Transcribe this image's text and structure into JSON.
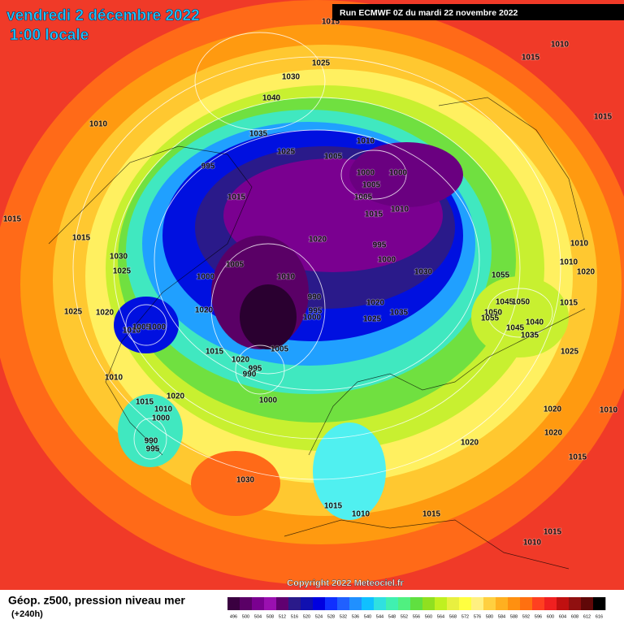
{
  "header": {
    "title": "vendredi 2 décembre 2022",
    "subtitle": "1:00 locale",
    "run": "Run ECMWF 0Z du mardi 22 novembre 2022"
  },
  "isobar_labels": [
    "1015",
    "1025",
    "1030",
    "1040",
    "1015",
    "1010",
    "1010",
    "1035",
    "1025",
    "1005",
    "1010",
    "995",
    "1015",
    "1000",
    "1000",
    "1005",
    "1005",
    "1015",
    "1010",
    "1020",
    "995",
    "1000",
    "1030",
    "1005",
    "1000",
    "1010",
    "990",
    "995",
    "1000",
    "1020",
    "1025",
    "1035",
    "1020",
    "1015",
    "1015",
    "1030",
    "1025",
    "1025",
    "1020",
    "1010",
    "1005",
    "1000",
    "1015",
    "1005",
    "1020",
    "995",
    "990",
    "1000",
    "1010",
    "1015",
    "1010",
    "1020",
    "1000",
    "990",
    "995",
    "1030",
    "1055",
    "1045",
    "1050",
    "1050",
    "1055",
    "1045",
    "1040",
    "1035",
    "1015",
    "1010",
    "1010",
    "1020",
    "1025",
    "1020",
    "1020",
    "1010",
    "1020",
    "1015",
    "1015",
    "1010",
    "1015",
    "1015",
    "1010",
    "1015"
  ],
  "footer": {
    "copyright": "Copyright 2022 Meteociel.fr",
    "field": "Géop. z500, pression niveau mer",
    "lead": "(+240h)"
  },
  "legend": {
    "ticks": [
      496,
      500,
      504,
      508,
      512,
      516,
      520,
      524,
      528,
      532,
      536,
      540,
      544,
      548,
      552,
      556,
      560,
      564,
      568,
      572,
      576,
      580,
      584,
      588,
      592,
      596,
      600,
      604,
      608,
      612,
      616
    ],
    "colors": [
      "#3a0040",
      "#5a0066",
      "#7a0090",
      "#9a10b0",
      "#600070",
      "#2a1a8a",
      "#1010b0",
      "#0000e0",
      "#1030ff",
      "#2060ff",
      "#2090ff",
      "#10c0ff",
      "#30e0e0",
      "#40f0b0",
      "#50f080",
      "#60e040",
      "#90e020",
      "#c0f020",
      "#e8f040",
      "#ffff40",
      "#fff080",
      "#ffd040",
      "#ffb020",
      "#ff9010",
      "#ff7010",
      "#ff4020",
      "#f02020",
      "#c01010",
      "#901010",
      "#600808",
      "#000000"
    ]
  }
}
